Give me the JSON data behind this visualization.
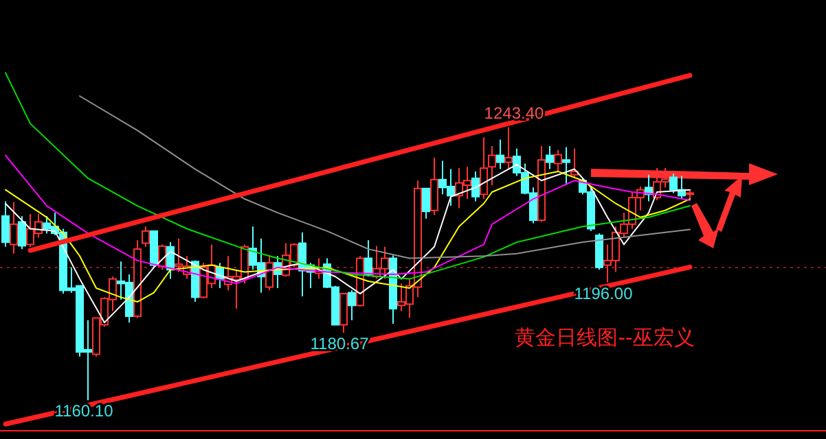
{
  "chart_data": {
    "type": "candlestick",
    "categories": [
      null,
      null,
      null,
      null,
      null,
      null,
      null,
      null,
      null,
      null,
      null,
      null,
      null,
      null,
      null,
      null,
      null,
      null,
      null,
      null,
      null,
      null,
      null,
      null,
      null,
      null,
      null,
      null,
      null,
      null,
      null,
      null,
      null,
      null,
      null,
      null,
      null,
      null,
      null,
      null,
      null,
      null,
      null,
      null,
      null,
      null,
      null,
      null,
      null,
      null,
      null,
      null,
      null,
      null,
      null,
      null,
      null,
      null,
      null,
      null,
      null,
      null,
      null,
      null,
      null,
      null,
      null,
      null,
      null,
      null,
      null,
      null,
      null,
      null,
      null,
      null,
      null,
      null,
      null,
      null,
      null,
      null,
      null,
      null
    ],
    "ohlc": [
      [
        1216.3,
        1220.8,
        1206.9,
        1208.3
      ],
      [
        1207.6,
        1220.5,
        1204.8,
        1213.8
      ],
      [
        1214.5,
        1216.3,
        1206.2,
        1207.2
      ],
      [
        1207.6,
        1216.9,
        1206.9,
        1212.4
      ],
      [
        1211.0,
        1216.9,
        1209.7,
        1214.5
      ],
      [
        1214.1,
        1216.3,
        1211.0,
        1212.4
      ],
      [
        1213.1,
        1217.3,
        1210.4,
        1211.0
      ],
      [
        1211.3,
        1212.4,
        1192.6,
        1193.6
      ],
      [
        1194.3,
        1200.6,
        1192.9,
        1193.6
      ],
      [
        1195.0,
        1195.0,
        1173.4,
        1174.8
      ],
      [
        1175.5,
        1184.5,
        1160.1,
        1174.8
      ],
      [
        1174.1,
        1185.2,
        1173.4,
        1185.2
      ],
      [
        1183.1,
        1191.5,
        1182.5,
        1191.1
      ],
      [
        1190.8,
        1197.8,
        1187.3,
        1197.1
      ],
      [
        1196.4,
        1202.4,
        1190.8,
        1195.7
      ],
      [
        1196.0,
        1198.5,
        1183.8,
        1185.7
      ],
      [
        1185.7,
        1208.9,
        1185.2,
        1206.2
      ],
      [
        1208.0,
        1213.1,
        1206.9,
        1211.7
      ],
      [
        1211.7,
        1211.7,
        1200.6,
        1201.3
      ],
      [
        1201.0,
        1207.6,
        1199.9,
        1207.1
      ],
      [
        1206.9,
        1208.3,
        1197.1,
        1199.9
      ],
      [
        1201.0,
        1209.4,
        1199.2,
        1201.6
      ],
      [
        1198.5,
        1204.1,
        1197.1,
        1201.0
      ],
      [
        1202.4,
        1202.7,
        1190.1,
        1191.5
      ],
      [
        1191.5,
        1202.0,
        1191.2,
        1200.6
      ],
      [
        1195.7,
        1207.6,
        1194.3,
        1201.3
      ],
      [
        1200.6,
        1202.0,
        1194.3,
        1197.1
      ],
      [
        1195.4,
        1204.1,
        1193.6,
        1197.8
      ],
      [
        1196.8,
        1199.9,
        1188.0,
        1197.8
      ],
      [
        1197.1,
        1207.6,
        1195.7,
        1206.9
      ],
      [
        1206.4,
        1213.1,
        1199.9,
        1201.3
      ],
      [
        1202.0,
        1209.4,
        1192.9,
        1197.8
      ],
      [
        1194.6,
        1204.1,
        1193.6,
        1202.0
      ],
      [
        1202.0,
        1204.1,
        1194.3,
        1198.5
      ],
      [
        1198.2,
        1208.0,
        1197.8,
        1204.3
      ],
      [
        1201.3,
        1208.0,
        1200.6,
        1207.6
      ],
      [
        1208.0,
        1211.3,
        1191.8,
        1199.6
      ],
      [
        1201.3,
        1202.0,
        1194.3,
        1199.2
      ],
      [
        1198.8,
        1203.4,
        1197.1,
        1200.6
      ],
      [
        1201.6,
        1203.4,
        1194.3,
        1194.6
      ],
      [
        1194.6,
        1195.0,
        1183.1,
        1183.1
      ],
      [
        1183.1,
        1192.9,
        1180.67,
        1192.6
      ],
      [
        1192.9,
        1193.6,
        1184.5,
        1189.0
      ],
      [
        1189.0,
        1204.1,
        1188.7,
        1203.4
      ],
      [
        1203.4,
        1208.9,
        1197.8,
        1198.5
      ],
      [
        1197.8,
        1207.1,
        1197.1,
        1200.2
      ],
      [
        1200.2,
        1206.9,
        1197.1,
        1203.4
      ],
      [
        1203.4,
        1204.3,
        1183.4,
        1188.0
      ],
      [
        1189.0,
        1195.7,
        1187.3,
        1190.1
      ],
      [
        1189.4,
        1197.1,
        1185.2,
        1195.0
      ],
      [
        1194.6,
        1227.1,
        1191.5,
        1224.7
      ],
      [
        1224.7,
        1224.7,
        1215.5,
        1217.7
      ],
      [
        1218.0,
        1234.1,
        1216.6,
        1227.4
      ],
      [
        1227.4,
        1233.1,
        1222.9,
        1225.0
      ],
      [
        1225.3,
        1230.6,
        1219.4,
        1222.5
      ],
      [
        1222.5,
        1230.9,
        1218.7,
        1226.4
      ],
      [
        1225.7,
        1231.3,
        1221.5,
        1227.1
      ],
      [
        1227.8,
        1229.9,
        1220.8,
        1222.2
      ],
      [
        1222.9,
        1240.3,
        1221.5,
        1230.9
      ],
      [
        1231.3,
        1237.6,
        1225.7,
        1234.8
      ],
      [
        1234.8,
        1239.6,
        1230.6,
        1232.7
      ],
      [
        1232.7,
        1243.4,
        1230.6,
        1234.1
      ],
      [
        1234.5,
        1236.9,
        1228.5,
        1229.5
      ],
      [
        1229.5,
        1232.3,
        1222.9,
        1223.3
      ],
      [
        1223.3,
        1225.0,
        1214.1,
        1215.0
      ],
      [
        1215.0,
        1237.6,
        1214.5,
        1233.4
      ],
      [
        1234.8,
        1237.6,
        1230.6,
        1232.7
      ],
      [
        1232.3,
        1236.4,
        1229.9,
        1235.0
      ],
      [
        1233.4,
        1237.3,
        1225.7,
        1232.7
      ],
      [
        1228.9,
        1236.9,
        1227.8,
        1229.9
      ],
      [
        1227.1,
        1227.8,
        1222.9,
        1223.6
      ],
      [
        1223.6,
        1225.0,
        1211.7,
        1212.4
      ],
      [
        1210.4,
        1211.0,
        1199.9,
        1200.6
      ],
      [
        1201.3,
        1207.6,
        1196.0,
        1202.7
      ],
      [
        1202.7,
        1213.1,
        1199.2,
        1211.3
      ],
      [
        1211.0,
        1217.3,
        1209.7,
        1213.8
      ],
      [
        1213.8,
        1223.6,
        1212.4,
        1221.9
      ],
      [
        1221.9,
        1225.3,
        1218.0,
        1224.3
      ],
      [
        1225.0,
        1228.9,
        1220.8,
        1222.9
      ],
      [
        1221.9,
        1230.9,
        1221.1,
        1226.7
      ],
      [
        1226.7,
        1230.9,
        1225.0,
        1227.5
      ],
      [
        1228.1,
        1229.2,
        1223.3,
        1224.3
      ],
      [
        1224.3,
        1228.5,
        1221.5,
        1222.5
      ],
      [
        1223.0,
        1224.3,
        1221.5,
        1223.3
      ]
    ],
    "colors": [
      "#54ffff",
      "#ff3232",
      "#54ffff",
      "#ff3232",
      "#ff3232",
      "#54ffff",
      "#54ffff",
      "#54ffff",
      "#54ffff",
      "#54ffff",
      "#54ffff",
      "#ff3232",
      "#ff3232",
      "#ff3232",
      "#54ffff",
      "#54ffff",
      "#ff3232",
      "#ff3232",
      "#54ffff",
      "#ff3232",
      "#54ffff",
      "#ff3232",
      "#ff3232",
      "#54ffff",
      "#ff3232",
      "#ff3232",
      "#54ffff",
      "#ff3232",
      "#ff3232",
      "#ff3232",
      "#54ffff",
      "#54ffff",
      "#ff3232",
      "#54ffff",
      "#ff3232",
      "#ff3232",
      "#54ffff",
      "#54ffff",
      "#ff3232",
      "#54ffff",
      "#54ffff",
      "#ff3232",
      "#54ffff",
      "#ff3232",
      "#54ffff",
      "#ff3232",
      "#ff3232",
      "#54ffff",
      "#ff3232",
      "#ff3232",
      "#ff3232",
      "#54ffff",
      "#ff3232",
      "#54ffff",
      "#54ffff",
      "#ff3232",
      "#ff3232",
      "#54ffff",
      "#ff3232",
      "#ff3232",
      "#54ffff",
      "#ff3232",
      "#54ffff",
      "#54ffff",
      "#54ffff",
      "#ff3232",
      "#54ffff",
      "#ff3232",
      "#54ffff",
      "#ff3232",
      "#54ffff",
      "#54ffff",
      "#54ffff",
      "#ff3232",
      "#ff3232",
      "#ff3232",
      "#ff3232",
      "#ff3232",
      "#54ffff",
      "#ff3232",
      "#ff3232",
      "#54ffff",
      "#54ffff",
      "#ff3232"
    ],
    "series": [
      {
        "type": "line",
        "color": "#ffffff",
        "values": [
          1220.1,
          null,
          null,
          1212.4,
          null,
          null,
          1211.7,
          null,
          null,
          1197.1,
          null,
          null,
          1183.8,
          null,
          null,
          1191.5,
          null,
          null,
          1200.6,
          null,
          1205.5,
          null,
          null,
          null,
          1199.9,
          null,
          null,
          null,
          1196.4,
          null,
          null,
          1199.2,
          null,
          null,
          null,
          null,
          1202.0,
          null,
          null,
          null,
          1197.8,
          null,
          null,
          1192.6,
          null,
          null,
          null,
          1199.9,
          1197.1,
          null,
          null,
          null,
          1206.9,
          null,
          1222.2,
          null,
          null,
          1225.0,
          null,
          1227.8,
          null,
          null,
          1232.0,
          null,
          null,
          1227.1,
          null,
          null,
          null,
          1230.6,
          null,
          1225.0,
          null,
          1215.9,
          null,
          1207.6,
          null,
          null,
          1217.3,
          1223.6,
          null,
          null,
          null,
          1224.3
        ]
      },
      {
        "type": "line",
        "color": "#ffff00",
        "values": [
          1224.3,
          null,
          null,
          null,
          null,
          1215.9,
          null,
          1211.0,
          null,
          1204.1,
          null,
          1194.3,
          null,
          null,
          1191.5,
          null,
          1190.1,
          null,
          1192.9,
          null,
          1199.9,
          null,
          null,
          null,
          null,
          1201.3,
          null,
          null,
          null,
          1199.2,
          null,
          null,
          null,
          1199.9,
          null,
          null,
          null,
          null,
          null,
          1200.6,
          null,
          null,
          null,
          null,
          1196.4,
          null,
          null,
          null,
          null,
          1194.3,
          null,
          null,
          1200.6,
          null,
          null,
          1213.1,
          null,
          null,
          1220.1,
          1223.6,
          null,
          null,
          null,
          1227.8,
          null,
          null,
          null,
          1229.9,
          null,
          null,
          1227.1,
          null,
          null,
          null,
          1220.1,
          null,
          null,
          1215.9,
          null,
          null,
          1218.0,
          null,
          null,
          1221.5
        ]
      },
      {
        "type": "line",
        "color": "#ff00ff",
        "values": [
          1234.8,
          null,
          null,
          null,
          null,
          1219.4,
          null,
          null,
          null,
          null,
          1211.0,
          null,
          null,
          null,
          null,
          null,
          1202.7,
          null,
          null,
          null,
          null,
          null,
          1199.2,
          null,
          null,
          null,
          null,
          null,
          1195.7,
          null,
          null,
          null,
          null,
          1200.6,
          null,
          null,
          null,
          null,
          null,
          1199.2,
          null,
          null,
          null,
          null,
          null,
          null,
          null,
          1198.5,
          null,
          null,
          null,
          1199.2,
          null,
          null,
          null,
          null,
          null,
          null,
          1207.6,
          1213.8,
          null,
          null,
          null,
          null,
          1221.5,
          null,
          null,
          null,
          null,
          1227.1,
          null,
          null,
          null,
          1225.0,
          null,
          null,
          1223.6,
          null,
          null,
          1222.9,
          null,
          null,
          null,
          1221.1
        ]
      },
      {
        "type": "line",
        "color": "#00e000",
        "values": [
          1260.0,
          null,
          null,
          1244.5,
          null,
          null,
          null,
          null,
          null,
          null,
          1227.8,
          null,
          null,
          null,
          null,
          null,
          1219.4,
          null,
          null,
          null,
          null,
          null,
          1212.4,
          null,
          null,
          null,
          null,
          null,
          null,
          1206.2,
          null,
          null,
          null,
          1203.4,
          null,
          null,
          null,
          null,
          null,
          null,
          null,
          null,
          1198.5,
          null,
          null,
          null,
          null,
          null,
          null,
          1197.1,
          null,
          null,
          null,
          null,
          null,
          null,
          null,
          null,
          1203.8,
          null,
          null,
          null,
          1208.3,
          null,
          null,
          null,
          null,
          null,
          null,
          null,
          1213.1,
          null,
          null,
          null,
          null,
          null,
          null,
          null,
          1215.9,
          null,
          null,
          null,
          null,
          1219.4
        ]
      },
      {
        "type": "line",
        "color": "#909090",
        "values": [
          null,
          null,
          null,
          null,
          null,
          null,
          null,
          null,
          null,
          1252.9,
          null,
          null,
          null,
          null,
          null,
          null,
          1242.4,
          null,
          null,
          null,
          null,
          null,
          null,
          1230.6,
          null,
          null,
          null,
          null,
          null,
          1221.5,
          null,
          null,
          null,
          1217.3,
          null,
          null,
          null,
          null,
          null,
          1211.7,
          null,
          null,
          null,
          null,
          1206.2,
          null,
          null,
          null,
          null,
          1203.4,
          null,
          null,
          null,
          null,
          null,
          null,
          null,
          null,
          1204.1,
          null,
          null,
          null,
          1204.8,
          null,
          null,
          null,
          null,
          null,
          null,
          null,
          1208.3,
          null,
          null,
          null,
          null,
          null,
          null,
          null,
          null,
          null,
          null,
          null,
          null,
          1212.2
        ]
      },
      {
        "type": "line",
        "color": "#ff2020",
        "values": [
          null,
          null,
          null,
          1205.8,
          null,
          null,
          null,
          null,
          null,
          null,
          null,
          null,
          null,
          null,
          null,
          null,
          null,
          null,
          null,
          null,
          null,
          null,
          null,
          null,
          null,
          null,
          null,
          null,
          null,
          null,
          null,
          null,
          null,
          null,
          null,
          null,
          null,
          null,
          null,
          null,
          null,
          null,
          null,
          null,
          null,
          null,
          null,
          null,
          null,
          null,
          null,
          null,
          null,
          null,
          null,
          null,
          null,
          null,
          null,
          null,
          null,
          null,
          null,
          null,
          null,
          null,
          null,
          null,
          null,
          null,
          null,
          null,
          null,
          null,
          null,
          null,
          null,
          null,
          null,
          null,
          null,
          null,
          null,
          1259.2
        ]
      },
      {
        "type": "line",
        "color": "#ff2020",
        "values": [
          1152.8,
          null,
          null,
          null,
          null,
          null,
          null,
          null,
          null,
          null,
          null,
          null,
          null,
          null,
          null,
          null,
          null,
          null,
          null,
          null,
          null,
          null,
          null,
          null,
          null,
          null,
          null,
          null,
          null,
          null,
          null,
          null,
          null,
          null,
          null,
          null,
          null,
          null,
          null,
          null,
          null,
          null,
          null,
          null,
          null,
          null,
          null,
          null,
          null,
          null,
          null,
          null,
          null,
          null,
          null,
          null,
          null,
          null,
          null,
          null,
          null,
          null,
          null,
          null,
          null,
          null,
          null,
          null,
          null,
          null,
          null,
          null,
          null,
          null,
          null,
          null,
          null,
          null,
          null,
          null,
          null,
          null,
          null,
          1200.7
        ]
      }
    ],
    "ref_lines": [
      {
        "axis": "y",
        "value": 1200.6,
        "color": "#8b1a1a",
        "line_style": "dotted"
      }
    ],
    "annotations": [
      {
        "text": "1243.40",
        "y": 1243.4
      },
      {
        "text": "1180.67",
        "y": 1180.67
      },
      {
        "text": "1160.10",
        "y": 1160.1
      },
      {
        "text": "1196.00",
        "y": 1196.0
      },
      "黄金日线图--巫宏义"
    ]
  }
}
